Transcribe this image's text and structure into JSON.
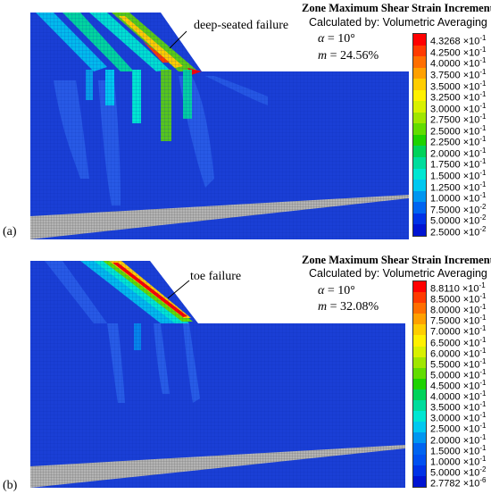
{
  "panels": [
    {
      "label": "(a)",
      "legend_title": "Zone Maximum Shear Strain Increment",
      "legend_subtitle": "Calculated by: Volumetric Averaging",
      "alpha_label": "α = 10°",
      "m_label": "m = 24.56%",
      "alpha_value": "10°",
      "m_value": "24.56%",
      "annotation": "deep-seated failure",
      "scale": [
        {
          "mant": "4.3268",
          "exp": "-1",
          "color": "#ff0000"
        },
        {
          "mant": "4.2500",
          "exp": "-1",
          "color": "#ff3a00"
        },
        {
          "mant": "4.0000",
          "exp": "-1",
          "color": "#ff6e00"
        },
        {
          "mant": "3.7500",
          "exp": "-1",
          "color": "#ffa000"
        },
        {
          "mant": "3.5000",
          "exp": "-1",
          "color": "#ffcd00"
        },
        {
          "mant": "3.2500",
          "exp": "-1",
          "color": "#fff000"
        },
        {
          "mant": "3.0000",
          "exp": "-1",
          "color": "#d8f000"
        },
        {
          "mant": "2.7500",
          "exp": "-1",
          "color": "#a0e600"
        },
        {
          "mant": "2.5000",
          "exp": "-1",
          "color": "#62dc00"
        },
        {
          "mant": "2.2500",
          "exp": "-1",
          "color": "#1ed200"
        },
        {
          "mant": "2.0000",
          "exp": "-1",
          "color": "#00d25a"
        },
        {
          "mant": "1.7500",
          "exp": "-1",
          "color": "#00dc9c"
        },
        {
          "mant": "1.5000",
          "exp": "-1",
          "color": "#00e6d2"
        },
        {
          "mant": "1.2500",
          "exp": "-1",
          "color": "#00c8f0"
        },
        {
          "mant": "1.0000",
          "exp": "-1",
          "color": "#0096f0"
        },
        {
          "mant": "7.5000",
          "exp": "-2",
          "color": "#0064f0"
        },
        {
          "mant": "5.0000",
          "exp": "-2",
          "color": "#0032e6"
        },
        {
          "mant": "2.5000",
          "exp": "-2",
          "color": "#0014d2"
        }
      ]
    },
    {
      "label": "(b)",
      "legend_title": "Zone Maximum Shear Strain Increment",
      "legend_subtitle": "Calculated by: Volumetric Averaging",
      "alpha_label": "α = 10°",
      "m_label": "m = 32.08%",
      "alpha_value": "10°",
      "m_value": "32.08%",
      "annotation": "toe failure",
      "scale": [
        {
          "mant": "8.8110",
          "exp": "-1",
          "color": "#ff0000"
        },
        {
          "mant": "8.5000",
          "exp": "-1",
          "color": "#ff3a00"
        },
        {
          "mant": "8.0000",
          "exp": "-1",
          "color": "#ff6e00"
        },
        {
          "mant": "7.5000",
          "exp": "-1",
          "color": "#ffa000"
        },
        {
          "mant": "7.0000",
          "exp": "-1",
          "color": "#ffcd00"
        },
        {
          "mant": "6.5000",
          "exp": "-1",
          "color": "#fff000"
        },
        {
          "mant": "6.0000",
          "exp": "-1",
          "color": "#d8f000"
        },
        {
          "mant": "5.5000",
          "exp": "-1",
          "color": "#a0e600"
        },
        {
          "mant": "5.0000",
          "exp": "-1",
          "color": "#62dc00"
        },
        {
          "mant": "4.5000",
          "exp": "-1",
          "color": "#1ed200"
        },
        {
          "mant": "4.0000",
          "exp": "-1",
          "color": "#00d25a"
        },
        {
          "mant": "3.5000",
          "exp": "-1",
          "color": "#00dc9c"
        },
        {
          "mant": "3.0000",
          "exp": "-1",
          "color": "#00e6d2"
        },
        {
          "mant": "2.5000",
          "exp": "-1",
          "color": "#00c8f0"
        },
        {
          "mant": "2.0000",
          "exp": "-1",
          "color": "#0096f0"
        },
        {
          "mant": "1.5000",
          "exp": "-1",
          "color": "#0064f0"
        },
        {
          "mant": "1.0000",
          "exp": "-1",
          "color": "#0050f0"
        },
        {
          "mant": "5.0000",
          "exp": "-2",
          "color": "#0032e6"
        },
        {
          "mant": "2.7782",
          "exp": "-6",
          "color": "#0014d2"
        }
      ]
    }
  ],
  "colors": {
    "background_zone": "#1a3fd6",
    "bedrock": "#a8a8a8",
    "mesh_line": "#0a2aa8"
  }
}
